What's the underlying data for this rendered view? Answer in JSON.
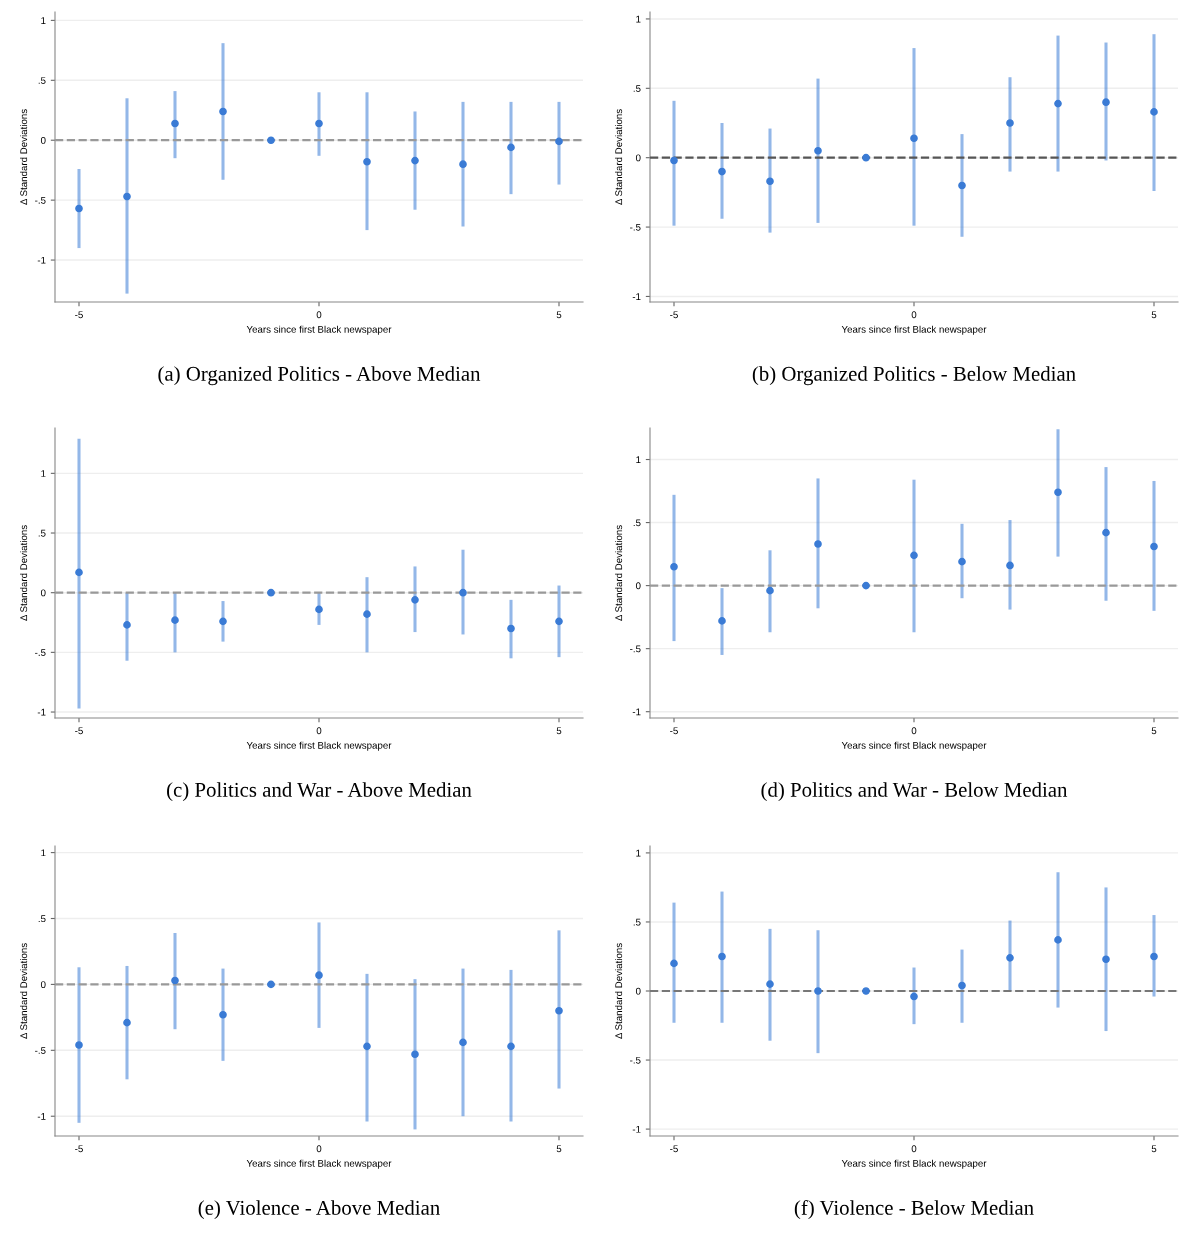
{
  "chart_data": [
    {
      "type": "scatter",
      "title": "(a) Organized Politics - Above Median",
      "xlabel": "Years since first Black newspaper",
      "ylabel": "Δ Standard Deviations",
      "x": [
        -5,
        -4,
        -3,
        -2,
        -1,
        0,
        1,
        2,
        3,
        4,
        5
      ],
      "xlim": [
        -5.5,
        5.5
      ],
      "xticks": [
        -5,
        0,
        5
      ],
      "ylim": [
        -1.35,
        1.07
      ],
      "yticks": [
        {
          "value": -1,
          "label": "-1"
        },
        {
          "value": -0.5,
          "label": "-.5"
        },
        0,
        {
          "value": 0.5,
          "label": ".5"
        },
        1
      ],
      "grid": "y",
      "marker": "circle",
      "series": [
        {
          "color": "#3a7bd5",
          "values": [
            -0.57,
            -0.47,
            0.14,
            0.24,
            0,
            0.14,
            -0.18,
            -0.17,
            -0.2,
            -0.06,
            -0.01
          ],
          "errors": [
            [
              -0.9,
              -0.24
            ],
            [
              -1.28,
              0.35
            ],
            [
              -0.15,
              0.41
            ],
            [
              -0.33,
              0.81
            ],
            null,
            [
              -0.13,
              0.4
            ],
            [
              -0.75,
              0.4
            ],
            [
              -0.58,
              0.24
            ],
            [
              -0.72,
              0.32
            ],
            [
              -0.45,
              0.32
            ],
            [
              -0.37,
              0.32
            ]
          ]
        }
      ],
      "ref_lines": [
        {
          "axis": "y",
          "value": 0,
          "color": "#999999",
          "line_style": "dashed"
        }
      ]
    },
    {
      "type": "scatter",
      "title": "(b) Organized Politics - Below Median",
      "xlabel": "Years since first Black newspaper",
      "ylabel": "Δ Standard Deviations",
      "x": [
        -5,
        -4,
        -3,
        -2,
        -1,
        0,
        1,
        2,
        3,
        4,
        5
      ],
      "xlim": [
        -5.5,
        5.5
      ],
      "xticks": [
        -5,
        0,
        5
      ],
      "ylim": [
        -1.04,
        1.05
      ],
      "yticks": [
        {
          "value": -1,
          "label": "-1"
        },
        {
          "value": -0.5,
          "label": "-.5"
        },
        0,
        {
          "value": 0.5,
          "label": ".5"
        },
        1
      ],
      "grid": "y",
      "marker": "circle",
      "series": [
        {
          "color": "#3a7bd5",
          "values": [
            -0.02,
            -0.1,
            -0.17,
            0.05,
            0,
            0.14,
            -0.2,
            0.25,
            0.39,
            0.4,
            0.33
          ],
          "errors": [
            [
              -0.49,
              0.41
            ],
            [
              -0.44,
              0.25
            ],
            [
              -0.54,
              0.21
            ],
            [
              -0.47,
              0.57
            ],
            null,
            [
              -0.49,
              0.79
            ],
            [
              -0.57,
              0.17
            ],
            [
              -0.1,
              0.58
            ],
            [
              -0.1,
              0.88
            ],
            [
              -0.02,
              0.83
            ],
            [
              -0.24,
              0.89
            ]
          ]
        }
      ],
      "ref_lines": [
        {
          "axis": "y",
          "value": 0,
          "color": "#555555",
          "line_style": "dashed"
        }
      ]
    },
    {
      "type": "scatter",
      "title": "(c) Politics and War - Above Median",
      "xlabel": "Years since first Black newspaper",
      "ylabel": "Δ Standard Deviations",
      "x": [
        -5,
        -4,
        -3,
        -2,
        -1,
        0,
        1,
        2,
        3,
        4,
        5
      ],
      "xlim": [
        -5.5,
        5.5
      ],
      "xticks": [
        -5,
        0,
        5
      ],
      "ylim": [
        -1.05,
        1.38
      ],
      "yticks": [
        {
          "value": -1,
          "label": "-1"
        },
        {
          "value": -0.5,
          "label": "-.5"
        },
        0,
        {
          "value": 0.5,
          "label": ".5"
        },
        1
      ],
      "grid": "y",
      "marker": "circle",
      "series": [
        {
          "color": "#3a7bd5",
          "values": [
            0.17,
            -0.27,
            -0.23,
            -0.24,
            0,
            -0.14,
            -0.18,
            -0.06,
            0.0,
            -0.3,
            -0.24
          ],
          "errors": [
            [
              -0.97,
              1.29
            ],
            [
              -0.57,
              0.0
            ],
            [
              -0.5,
              0.0
            ],
            [
              -0.41,
              -0.07
            ],
            null,
            [
              -0.27,
              0.0
            ],
            [
              -0.5,
              0.13
            ],
            [
              -0.33,
              0.22
            ],
            [
              -0.35,
              0.36
            ],
            [
              -0.55,
              -0.06
            ],
            [
              -0.54,
              0.06
            ]
          ]
        }
      ],
      "ref_lines": [
        {
          "axis": "y",
          "value": 0,
          "color": "#999999",
          "line_style": "dashed"
        }
      ]
    },
    {
      "type": "scatter",
      "title": "(d) Politics and War - Below Median",
      "xlabel": "Years since first Black newspaper",
      "ylabel": "Δ Standard Deviations",
      "x": [
        -5,
        -4,
        -3,
        -2,
        -1,
        0,
        1,
        2,
        3,
        4,
        5
      ],
      "xlim": [
        -5.5,
        5.5
      ],
      "xticks": [
        -5,
        0,
        5
      ],
      "ylim": [
        -1.05,
        1.25
      ],
      "yticks": [
        {
          "value": -1,
          "label": "-1"
        },
        {
          "value": -0.5,
          "label": "-.5"
        },
        0,
        {
          "value": 0.5,
          "label": ".5"
        },
        1
      ],
      "grid": "y",
      "marker": "circle",
      "series": [
        {
          "color": "#3a7bd5",
          "values": [
            0.15,
            -0.28,
            -0.04,
            0.33,
            0,
            0.24,
            0.19,
            0.16,
            0.74,
            0.42,
            0.31
          ],
          "errors": [
            [
              -0.44,
              0.72
            ],
            [
              -0.55,
              -0.02
            ],
            [
              -0.37,
              0.28
            ],
            [
              -0.18,
              0.85
            ],
            null,
            [
              -0.37,
              0.84
            ],
            [
              -0.1,
              0.49
            ],
            [
              -0.19,
              0.52
            ],
            [
              0.23,
              1.24
            ],
            [
              -0.12,
              0.94
            ],
            [
              -0.2,
              0.83
            ]
          ]
        }
      ],
      "ref_lines": [
        {
          "axis": "y",
          "value": 0,
          "color": "#999999",
          "line_style": "dashed"
        }
      ]
    },
    {
      "type": "scatter",
      "title": "(e) Violence - Above Median",
      "xlabel": "Years since first Black newspaper",
      "ylabel": "Δ Standard Deviations",
      "x": [
        -5,
        -4,
        -3,
        -2,
        -1,
        0,
        1,
        2,
        3,
        4,
        5
      ],
      "xlim": [
        -5.5,
        5.5
      ],
      "xticks": [
        -5,
        0,
        5
      ],
      "ylim": [
        -1.15,
        1.05
      ],
      "yticks": [
        {
          "value": -1,
          "label": "-1"
        },
        {
          "value": -0.5,
          "label": "-.5"
        },
        0,
        {
          "value": 0.5,
          "label": ".5"
        },
        1
      ],
      "grid": "y",
      "marker": "circle",
      "series": [
        {
          "color": "#3a7bd5",
          "values": [
            -0.46,
            -0.29,
            0.03,
            -0.23,
            0,
            0.07,
            -0.47,
            -0.53,
            -0.44,
            -0.47,
            -0.2
          ],
          "errors": [
            [
              -1.05,
              0.13
            ],
            [
              -0.72,
              0.14
            ],
            [
              -0.34,
              0.39
            ],
            [
              -0.58,
              0.12
            ],
            null,
            [
              -0.33,
              0.47
            ],
            [
              -1.04,
              0.08
            ],
            [
              -1.1,
              0.04
            ],
            [
              -1.0,
              0.12
            ],
            [
              -1.04,
              0.11
            ],
            [
              -0.79,
              0.41
            ]
          ]
        }
      ],
      "ref_lines": [
        {
          "axis": "y",
          "value": 0,
          "color": "#999999",
          "line_style": "dashed"
        }
      ]
    },
    {
      "type": "scatter",
      "title": "(f) Violence - Below Median",
      "xlabel": "Years since first Black newspaper",
      "ylabel": "Δ Standard Deviations",
      "x": [
        -5,
        -4,
        -3,
        -2,
        -1,
        0,
        1,
        2,
        3,
        4,
        5
      ],
      "xlim": [
        -5.5,
        5.5
      ],
      "xticks": [
        -5,
        0,
        5
      ],
      "ylim": [
        -1.05,
        1.05
      ],
      "yticks": [
        {
          "value": -1,
          "label": "-1"
        },
        {
          "value": -0.5,
          "label": "-.5"
        },
        0,
        {
          "value": 0.5,
          "label": ".5"
        },
        1
      ],
      "grid": "y",
      "marker": "circle",
      "series": [
        {
          "color": "#3a7bd5",
          "values": [
            0.2,
            0.25,
            0.05,
            0.0,
            0,
            -0.04,
            0.04,
            0.24,
            0.37,
            0.23,
            0.25
          ],
          "errors": [
            [
              -0.23,
              0.64
            ],
            [
              -0.23,
              0.72
            ],
            [
              -0.36,
              0.45
            ],
            [
              -0.45,
              0.44
            ],
            null,
            [
              -0.24,
              0.17
            ],
            [
              -0.23,
              0.3
            ],
            [
              0.0,
              0.51
            ],
            [
              -0.12,
              0.86
            ],
            [
              -0.29,
              0.75
            ],
            [
              -0.04,
              0.55
            ]
          ]
        }
      ],
      "ref_lines": [
        {
          "axis": "y",
          "value": 0,
          "color": "#777777",
          "line_style": "dashed"
        }
      ]
    }
  ]
}
